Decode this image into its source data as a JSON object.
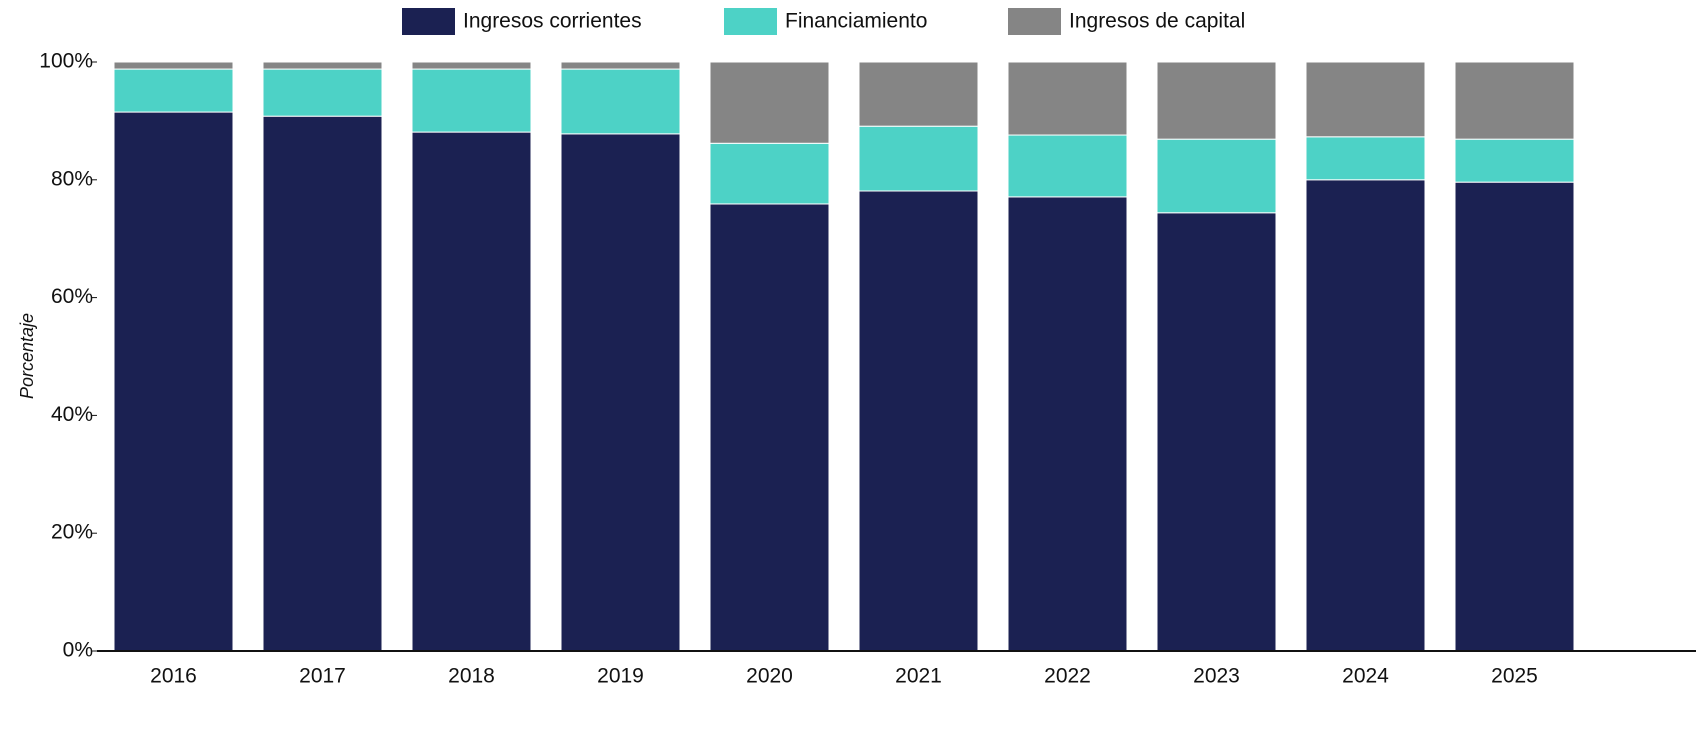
{
  "chart_data": {
    "type": "stacked_bar",
    "y_label": "Porcentaje",
    "categories": [
      "2016",
      "2017",
      "2018",
      "2019",
      "2020",
      "2021",
      "2022",
      "2023",
      "2024",
      "2025"
    ],
    "series": [
      {
        "name": "Ingresos corrientes",
        "color": "#1b2152",
        "values": [
          91.5,
          90.8,
          88.1,
          87.8,
          75.9,
          78.1,
          77.1,
          74.4,
          80.0,
          79.6
        ]
      },
      {
        "name": "Financiamiento",
        "color": "#4dd2c6",
        "values": [
          7.3,
          8.0,
          10.7,
          11.0,
          10.3,
          11.0,
          10.5,
          12.5,
          7.3,
          7.3
        ]
      },
      {
        "name": "Ingresos de capital",
        "color": "#858585",
        "values": [
          1.2,
          1.2,
          1.2,
          1.2,
          13.8,
          10.9,
          12.4,
          13.1,
          12.7,
          13.1
        ]
      }
    ],
    "ylim": [
      0,
      100
    ],
    "yticks": [
      {
        "value": 0,
        "label": "0%"
      },
      {
        "value": 20,
        "label": "20%"
      },
      {
        "value": 40,
        "label": "40%"
      },
      {
        "value": 60,
        "label": "60%"
      },
      {
        "value": 80,
        "label": "80%"
      },
      {
        "value": 100,
        "label": "100%"
      }
    ],
    "legend": "top"
  }
}
